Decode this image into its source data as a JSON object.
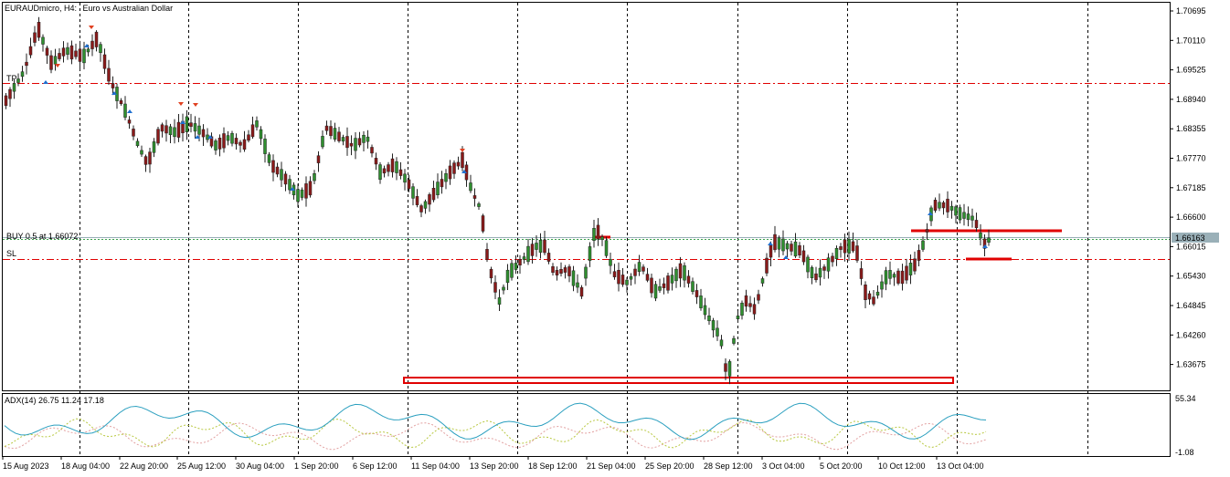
{
  "header": {
    "symbol_label": "EURAUDmicro, H4:",
    "description": "Euro vs Australian Dollar"
  },
  "price_scale": [
    "1.70695",
    "1.70110",
    "1.69525",
    "1.68940",
    "1.68355",
    "1.67770",
    "1.67185",
    "1.66600",
    "1.66015",
    "1.65430",
    "1.64845",
    "1.64260",
    "1.63675"
  ],
  "current_price": "1.66163",
  "lines": {
    "tp_label": "TP",
    "sl_label": "SL",
    "buy_label": "BUY 0.5 at 1.66072"
  },
  "indicator": {
    "label": "ADX(14) 26.75 11.24 17.18",
    "scale_top": "55.34",
    "scale_bottom": "-1.08"
  },
  "time_axis": [
    "15 Aug 2023",
    "18 Aug 04:00",
    "22 Aug 20:00",
    "25 Aug 12:00",
    "30 Aug 04:00",
    "1 Sep 20:00",
    "6 Sep 12:00",
    "11 Sep 04:00",
    "13 Sep 20:00",
    "18 Sep 12:00",
    "21 Sep 04:00",
    "25 Sep 20:00",
    "28 Sep 12:00",
    "3 Oct 04:00",
    "5 Oct 20:00",
    "10 Oct 12:00",
    "13 Oct 04:00"
  ],
  "colors": {
    "bull": "#2f8f2f",
    "bear": "#8b1a1a",
    "level": "#e00000",
    "adx": "#2a9fbf",
    "di_plus": "#b8c840",
    "di_minus": "#e2a0a0"
  }
}
